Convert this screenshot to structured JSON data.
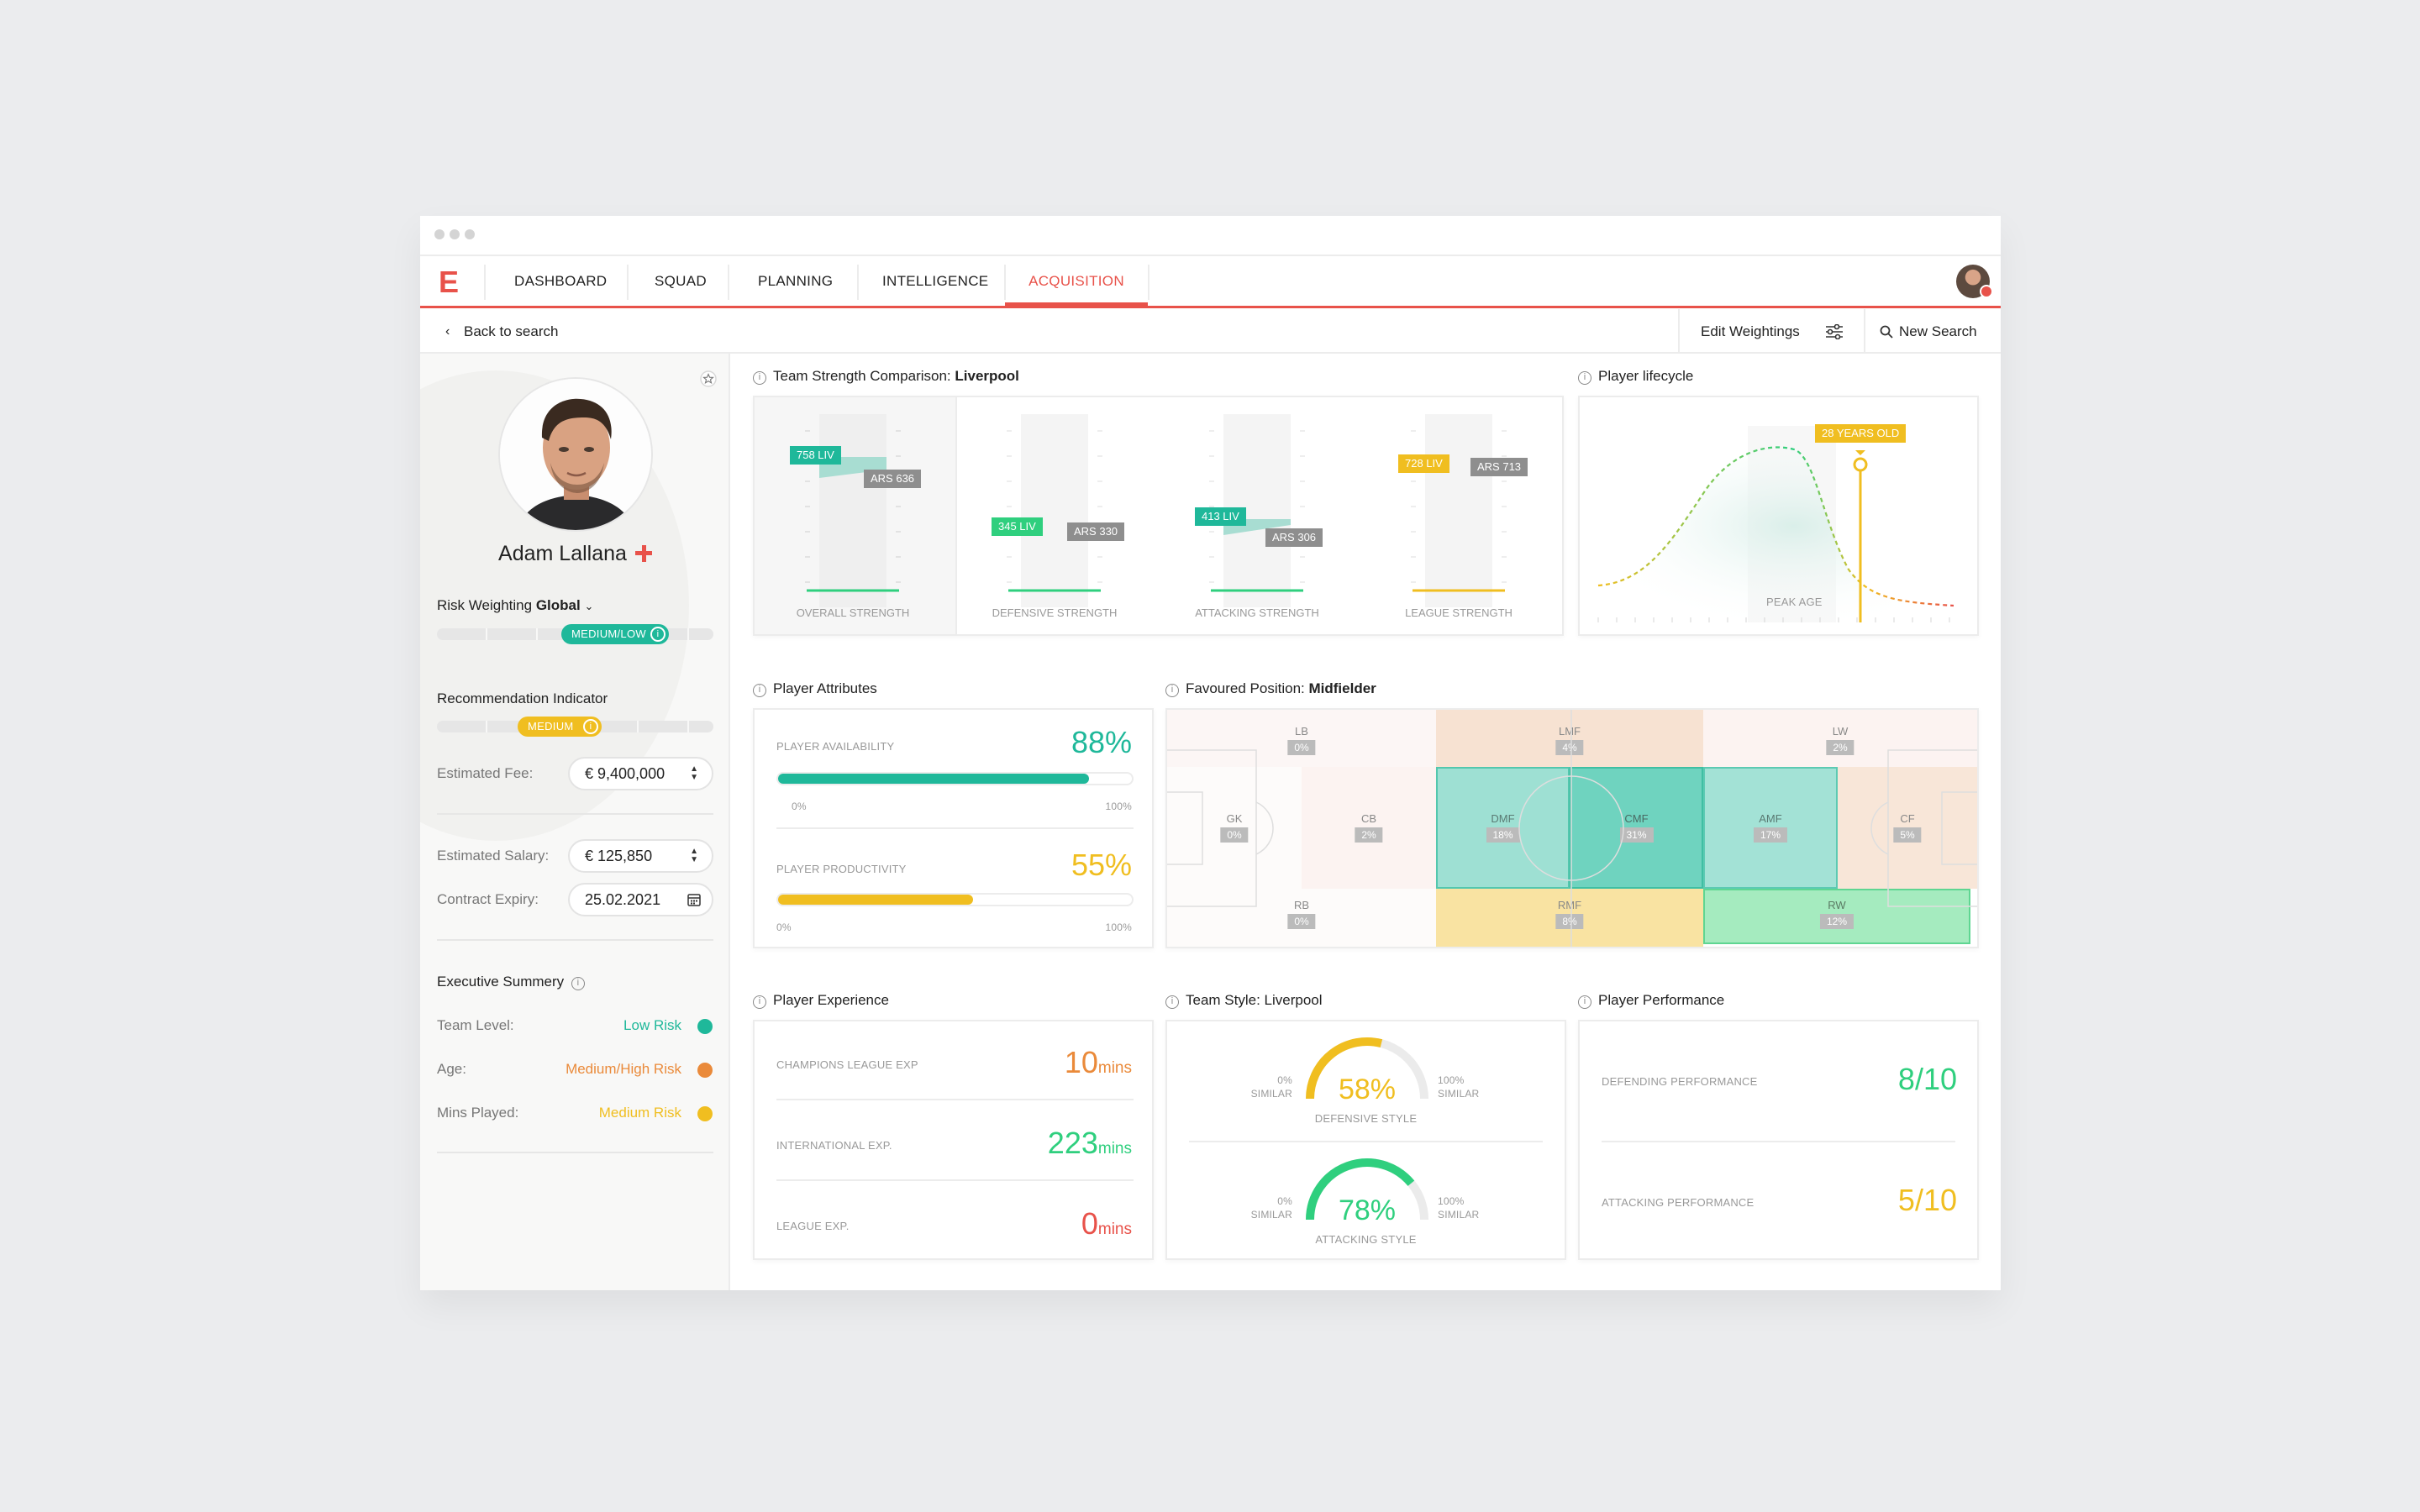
{
  "nav": {
    "logo": "E",
    "items": [
      "DASHBOARD",
      "SQUAD",
      "PLANNING",
      "INTELLIGENCE",
      "ACQUISITION"
    ],
    "active": "ACQUISITION"
  },
  "subbar": {
    "back": "Back to search",
    "edit": "Edit Weightings",
    "new_search": "New Search"
  },
  "player": {
    "name": "Adam Lallana"
  },
  "sidebar": {
    "risk_label": "Risk Weighting",
    "risk_value": "Global",
    "risk_pill": "MEDIUM/LOW",
    "risk_level": 0.6,
    "rec_label": "Recommendation Indicator",
    "rec_pill": "MEDIUM",
    "rec_level": 0.5,
    "fee_label": "Estimated Fee:",
    "fee_value": "€ 9,400,000",
    "salary_label": "Estimated Salary:",
    "salary_value": "€ 125,850",
    "expiry_label": "Contract Expiry:",
    "expiry_value": "25.02.2021",
    "summary_title": "Executive Summery",
    "summary": [
      {
        "label": "Team Level:",
        "value": "Low Risk",
        "color": "#1fb89a"
      },
      {
        "label": "Age:",
        "value": "Medium/High Risk",
        "color": "#ea8a3a"
      },
      {
        "label": "Mins Played:",
        "value": "Medium Risk",
        "color": "#f0be20"
      }
    ]
  },
  "team_strength": {
    "title_prefix": "Team Strength Comparison:",
    "team": "Liverpool",
    "groups": [
      {
        "label": "OVERALL STRENGTH",
        "liv": "758 LIV",
        "ars": "ARS 636"
      },
      {
        "label": "DEFENSIVE STRENGTH",
        "liv": "345 LIV",
        "ars": "ARS 330"
      },
      {
        "label": "ATTACKING STRENGTH",
        "liv": "413 LIV",
        "ars": "ARS 306"
      },
      {
        "label": "LEAGUE STRENGTH",
        "liv": "728 LIV",
        "ars": "ARS 713"
      }
    ]
  },
  "lifecycle": {
    "title": "Player lifecycle",
    "badge": "28 YEARS OLD",
    "peak": "PEAK AGE"
  },
  "attributes": {
    "title": "Player Attributes",
    "items": [
      {
        "label": "PLAYER AVAILABILITY",
        "value": "88%",
        "pct": 88,
        "color": "#1fb89a",
        "min": "0%",
        "max": "100%"
      },
      {
        "label": "PLAYER PRODUCTIVITY",
        "value": "55%",
        "pct": 55,
        "color": "#f0be20",
        "min": "0%",
        "max": "100%"
      }
    ]
  },
  "position": {
    "title_prefix": "Favoured Position:",
    "position": "Midfielder",
    "zones": {
      "lb": {
        "label": "LB",
        "value": "0%"
      },
      "lmf": {
        "label": "LMF",
        "value": "4%"
      },
      "lw": {
        "label": "LW",
        "value": "2%"
      },
      "gk": {
        "label": "GK",
        "value": "0%"
      },
      "cb": {
        "label": "CB",
        "value": "2%"
      },
      "dmf": {
        "label": "DMF",
        "value": "18%"
      },
      "cmf": {
        "label": "CMF",
        "value": "31%"
      },
      "amf": {
        "label": "AMF",
        "value": "17%"
      },
      "cf": {
        "label": "CF",
        "value": "5%"
      },
      "rb": {
        "label": "RB",
        "value": "0%"
      },
      "rmf": {
        "label": "RMF",
        "value": "8%"
      },
      "rw": {
        "label": "RW",
        "value": "12%"
      }
    }
  },
  "experience": {
    "title": "Player Experience",
    "items": [
      {
        "label": "CHAMPIONS LEAGUE EXP",
        "value": "10",
        "unit": "mins",
        "color": "#ea8a3a"
      },
      {
        "label": "INTERNATIONAL EXP.",
        "value": "223",
        "unit": "mins",
        "color": "#2fcf7e"
      },
      {
        "label": "LEAGUE EXP.",
        "value": "0",
        "unit": "mins",
        "color": "#e8524a"
      }
    ]
  },
  "team_style": {
    "title": "Team Style: Liverpool",
    "gauges": [
      {
        "label": "DEFENSIVE STYLE",
        "value": "58%",
        "pct": 58,
        "color": "#f0be20",
        "min_pct": "0%",
        "min_word": "SIMILAR",
        "max_pct": "100%",
        "max_word": "SIMILAR"
      },
      {
        "label": "ATTACKING STYLE",
        "value": "78%",
        "pct": 78,
        "color": "#2fcf7e",
        "min_pct": "0%",
        "min_word": "SIMILAR",
        "max_pct": "100%",
        "max_word": "SIMILAR"
      }
    ]
  },
  "performance": {
    "title": "Player Performance",
    "items": [
      {
        "label": "DEFENDING PERFORMANCE",
        "value": "8/10",
        "color": "#2fcf7e"
      },
      {
        "label": "ATTACKING PERFORMANCE",
        "value": "5/10",
        "color": "#f0be20"
      }
    ]
  }
}
